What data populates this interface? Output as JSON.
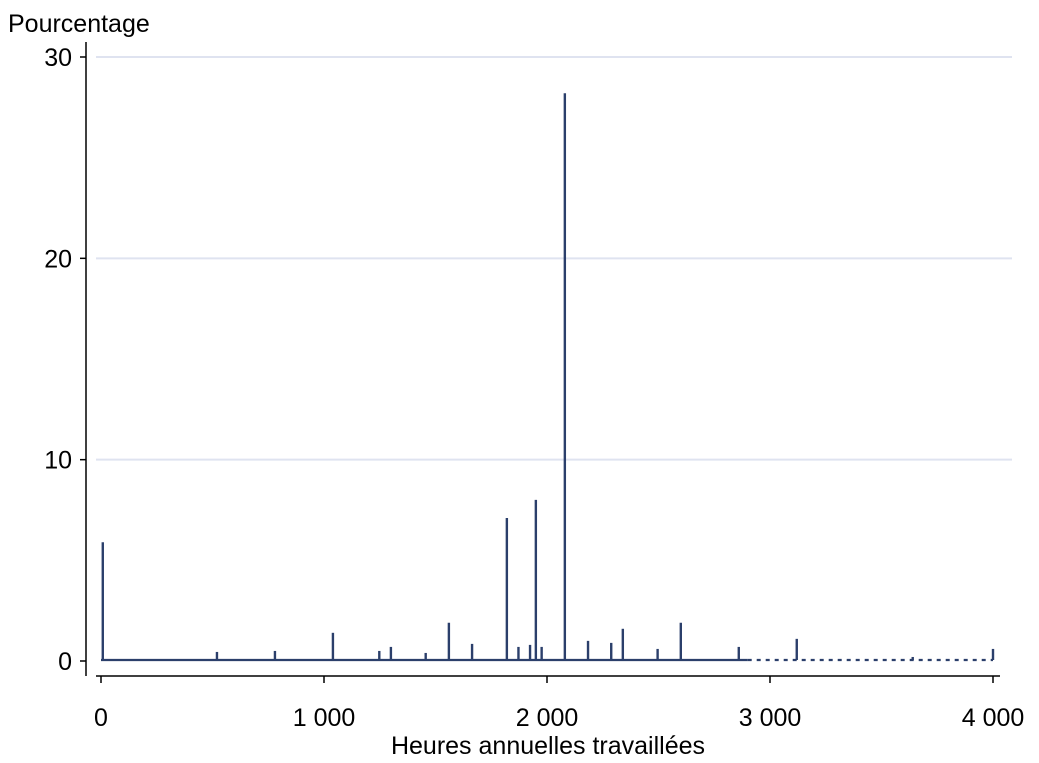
{
  "chart_data": {
    "type": "line",
    "title": "",
    "ylabel": "Pourcentage",
    "xlabel": "Heures annuelles travaillées",
    "xlim": [
      0,
      4000
    ],
    "ylim": [
      0,
      30
    ],
    "x_ticks": [
      0,
      1000,
      2000,
      3000,
      4000
    ],
    "x_tick_labels": [
      "0",
      "1 000",
      "2 000",
      "3 000",
      "4 000"
    ],
    "y_ticks": [
      0,
      10,
      20,
      30
    ],
    "y_tick_labels": [
      "0",
      "10",
      "20",
      "30"
    ],
    "grid": true,
    "colors": {
      "series": "#2b3f6b",
      "grid": "#dfe3f0",
      "axis": "#000000"
    },
    "baseline_value": 0.05,
    "baseline_x_range": [
      0,
      4000
    ],
    "spikes": [
      {
        "x": 8,
        "y": 5.9
      },
      {
        "x": 520,
        "y": 0.45
      },
      {
        "x": 780,
        "y": 0.5
      },
      {
        "x": 1040,
        "y": 1.4
      },
      {
        "x": 1248,
        "y": 0.5
      },
      {
        "x": 1300,
        "y": 0.7
      },
      {
        "x": 1456,
        "y": 0.4
      },
      {
        "x": 1560,
        "y": 1.9
      },
      {
        "x": 1664,
        "y": 0.85
      },
      {
        "x": 1820,
        "y": 7.1
      },
      {
        "x": 1872,
        "y": 0.7
      },
      {
        "x": 1924,
        "y": 0.8
      },
      {
        "x": 1950,
        "y": 8.0
      },
      {
        "x": 1976,
        "y": 0.7
      },
      {
        "x": 2080,
        "y": 28.2
      },
      {
        "x": 2184,
        "y": 1.0
      },
      {
        "x": 2288,
        "y": 0.9
      },
      {
        "x": 2340,
        "y": 1.6
      },
      {
        "x": 2496,
        "y": 0.6
      },
      {
        "x": 2600,
        "y": 1.9
      },
      {
        "x": 2860,
        "y": 0.7
      },
      {
        "x": 3120,
        "y": 1.1
      },
      {
        "x": 3640,
        "y": 0.2
      },
      {
        "x": 4000,
        "y": 0.6
      }
    ]
  }
}
